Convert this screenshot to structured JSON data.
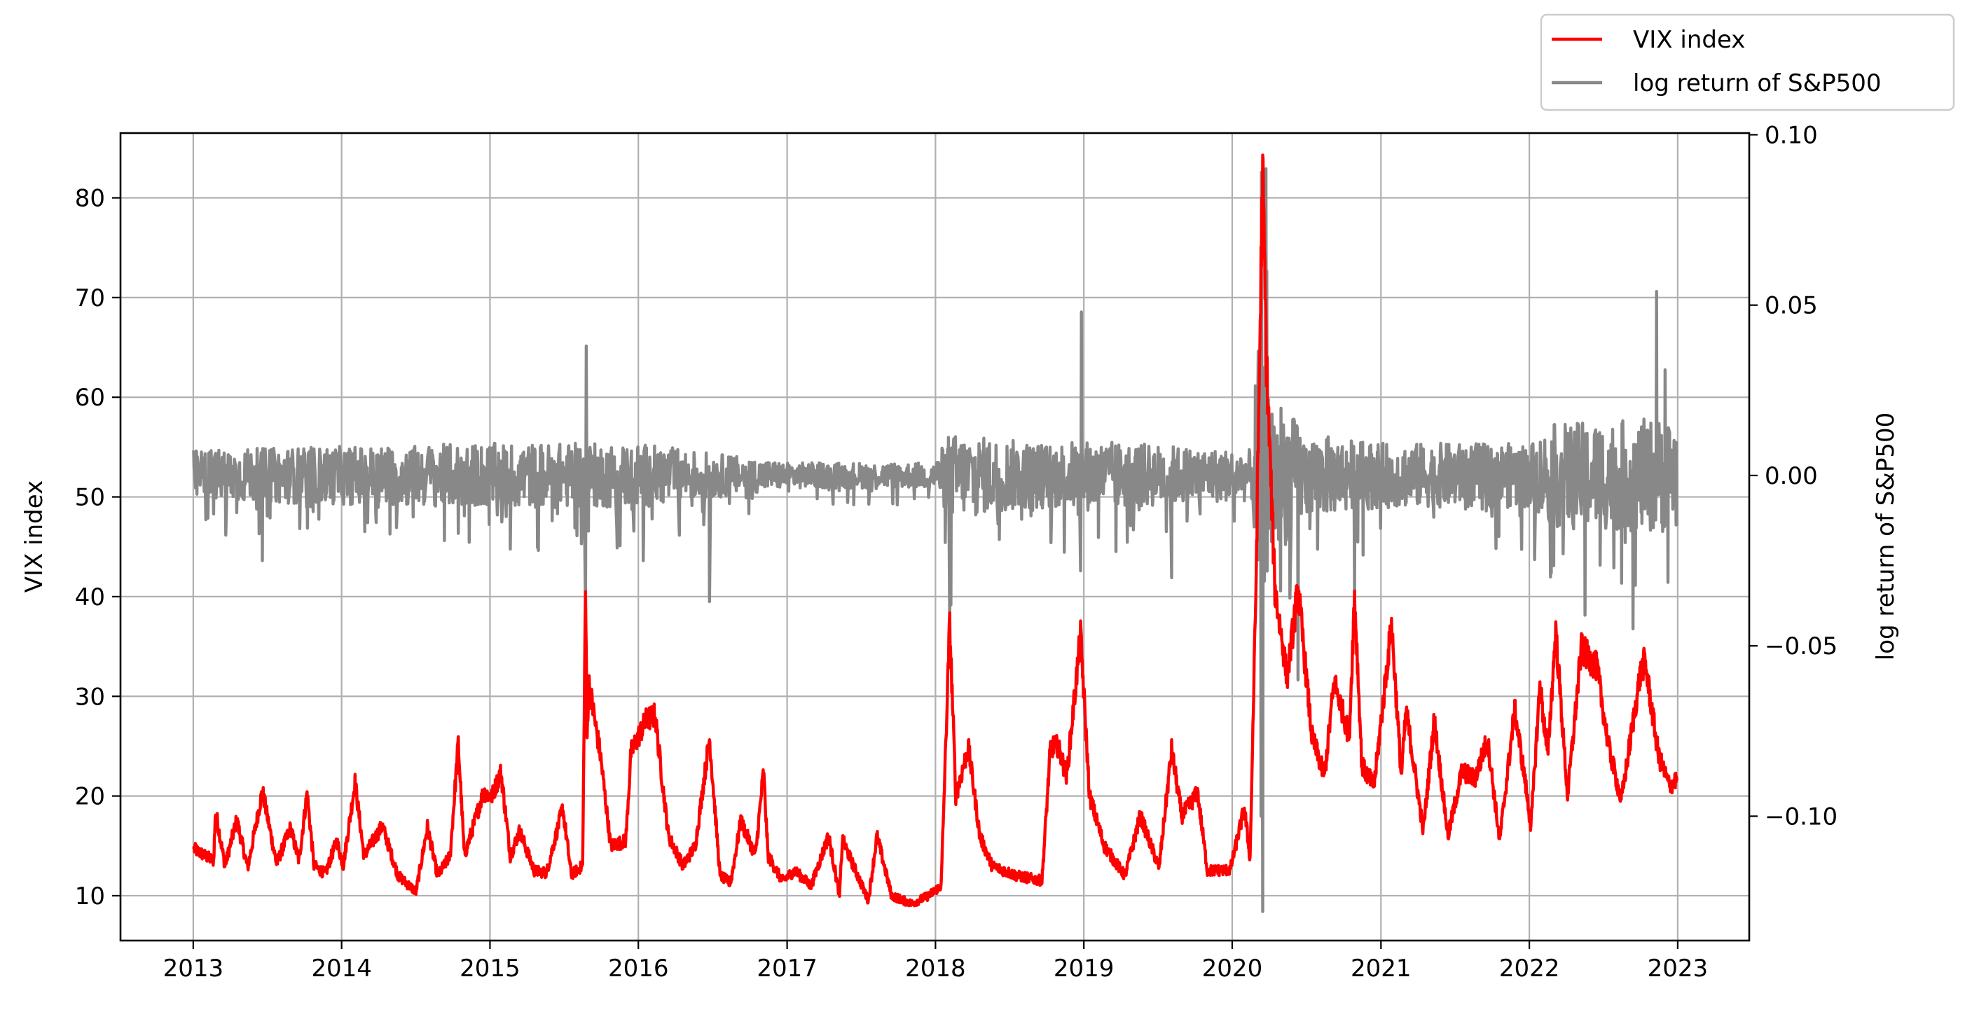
{
  "chart_data": {
    "type": "line",
    "x_axis": {
      "type": "date",
      "range": [
        "2012-07-06",
        "2023-06-26"
      ],
      "tick_labels": [
        "2013",
        "2014",
        "2015",
        "2016",
        "2017",
        "2018",
        "2019",
        "2020",
        "2021",
        "2022",
        "2023"
      ]
    },
    "y_left": {
      "label": "VIX index",
      "range": [
        5.5,
        86.5
      ],
      "ticks": [
        10,
        20,
        30,
        40,
        50,
        60,
        70,
        80
      ],
      "tick_labels": [
        "10",
        "20",
        "30",
        "40",
        "50",
        "60",
        "70",
        "80"
      ]
    },
    "y_right": {
      "label": "log return of S&P500",
      "range": [
        -0.1365,
        0.1005
      ],
      "ticks": [
        -0.1,
        -0.05,
        0.0,
        0.05,
        0.1
      ],
      "tick_labels": [
        "−0.10",
        "−0.05",
        "0.00",
        "0.05",
        "0.10"
      ]
    },
    "grid": true,
    "legend_position": "above-top-right",
    "series": [
      {
        "name": "VIX index",
        "axis": "left",
        "color": "#ff0000",
        "points": [
          [
            "2013-01-02",
            14.7
          ],
          [
            "2013-02-20",
            13.5
          ],
          [
            "2013-02-25",
            18.5
          ],
          [
            "2013-03-20",
            13.0
          ],
          [
            "2013-04-18",
            17.6
          ],
          [
            "2013-05-15",
            12.8
          ],
          [
            "2013-06-20",
            20.5
          ],
          [
            "2013-07-25",
            13.2
          ],
          [
            "2013-08-28",
            16.8
          ],
          [
            "2013-09-18",
            13.5
          ],
          [
            "2013-10-08",
            20.3
          ],
          [
            "2013-10-25",
            13.0
          ],
          [
            "2013-11-22",
            12.2
          ],
          [
            "2013-12-20",
            15.5
          ],
          [
            "2014-01-05",
            13.0
          ],
          [
            "2014-02-03",
            21.4
          ],
          [
            "2014-02-25",
            14.0
          ],
          [
            "2014-04-11",
            17.0
          ],
          [
            "2014-05-20",
            12.0
          ],
          [
            "2014-07-03",
            10.4
          ],
          [
            "2014-07-31",
            16.9
          ],
          [
            "2014-08-25",
            12.0
          ],
          [
            "2014-09-25",
            14.0
          ],
          [
            "2014-10-15",
            25.3
          ],
          [
            "2014-10-30",
            14.0
          ],
          [
            "2014-12-16",
            20.4
          ],
          [
            "2015-01-05",
            19.9
          ],
          [
            "2015-01-28",
            22.4
          ],
          [
            "2015-02-20",
            14.0
          ],
          [
            "2015-03-15",
            16.5
          ],
          [
            "2015-04-20",
            12.5
          ],
          [
            "2015-05-20",
            12.3
          ],
          [
            "2015-06-29",
            18.8
          ],
          [
            "2015-07-20",
            12.1
          ],
          [
            "2015-08-17",
            13.0
          ],
          [
            "2015-08-24",
            40.7
          ],
          [
            "2015-08-28",
            26.0
          ],
          [
            "2015-09-01",
            31.4
          ],
          [
            "2015-09-30",
            24.0
          ],
          [
            "2015-10-25",
            15.0
          ],
          [
            "2015-12-01",
            15.5
          ],
          [
            "2015-12-14",
            24.4
          ],
          [
            "2016-01-20",
            27.6
          ],
          [
            "2016-02-11",
            28.1
          ],
          [
            "2016-03-15",
            16.0
          ],
          [
            "2016-04-20",
            13.0
          ],
          [
            "2016-05-20",
            15.0
          ],
          [
            "2016-06-24",
            25.8
          ],
          [
            "2016-07-20",
            12.0
          ],
          [
            "2016-08-15",
            11.3
          ],
          [
            "2016-09-09",
            17.5
          ],
          [
            "2016-10-15",
            14.0
          ],
          [
            "2016-11-04",
            22.5
          ],
          [
            "2016-11-15",
            14.0
          ],
          [
            "2016-12-20",
            11.5
          ],
          [
            "2017-01-20",
            12.5
          ],
          [
            "2017-03-01",
            11.0
          ],
          [
            "2017-04-13",
            16.0
          ],
          [
            "2017-05-10",
            10.0
          ],
          [
            "2017-05-17",
            15.6
          ],
          [
            "2017-07-20",
            9.5
          ],
          [
            "2017-08-10",
            16.0
          ],
          [
            "2017-09-15",
            10.0
          ],
          [
            "2017-11-03",
            9.2
          ],
          [
            "2017-12-15",
            10.0
          ],
          [
            "2018-01-15",
            11.0
          ],
          [
            "2018-02-05",
            37.3
          ],
          [
            "2018-02-20",
            20.0
          ],
          [
            "2018-03-23",
            24.9
          ],
          [
            "2018-04-20",
            16.0
          ],
          [
            "2018-05-20",
            13.0
          ],
          [
            "2018-07-20",
            12.0
          ],
          [
            "2018-09-20",
            11.5
          ],
          [
            "2018-10-11",
            24.9
          ],
          [
            "2018-10-29",
            25.0
          ],
          [
            "2018-11-20",
            22.0
          ],
          [
            "2018-12-24",
            36.1
          ],
          [
            "2019-01-15",
            20.0
          ],
          [
            "2019-02-20",
            15.0
          ],
          [
            "2019-04-12",
            12.0
          ],
          [
            "2019-05-20",
            18.0
          ],
          [
            "2019-07-05",
            12.8
          ],
          [
            "2019-08-05",
            24.6
          ],
          [
            "2019-08-30",
            18.0
          ],
          [
            "2019-10-08",
            20.3
          ],
          [
            "2019-11-01",
            12.5
          ],
          [
            "2019-12-27",
            12.6
          ],
          [
            "2020-01-31",
            18.8
          ],
          [
            "2020-02-14",
            13.7
          ],
          [
            "2020-02-28",
            40.1
          ],
          [
            "2020-03-16",
            82.7
          ],
          [
            "2020-03-25",
            63.9
          ],
          [
            "2020-04-15",
            40.8
          ],
          [
            "2020-05-15",
            31.9
          ],
          [
            "2020-06-11",
            40.8
          ],
          [
            "2020-07-15",
            26.0
          ],
          [
            "2020-08-15",
            22.0
          ],
          [
            "2020-09-08",
            31.5
          ],
          [
            "2020-10-15",
            26.0
          ],
          [
            "2020-10-28",
            40.3
          ],
          [
            "2020-11-15",
            23.0
          ],
          [
            "2020-12-15",
            21.0
          ],
          [
            "2021-01-27",
            37.2
          ],
          [
            "2021-02-20",
            22.0
          ],
          [
            "2021-03-04",
            28.6
          ],
          [
            "2021-04-15",
            16.5
          ],
          [
            "2021-05-12",
            27.6
          ],
          [
            "2021-06-15",
            16.0
          ],
          [
            "2021-07-19",
            22.5
          ],
          [
            "2021-08-20",
            21.7
          ],
          [
            "2021-09-20",
            25.7
          ],
          [
            "2021-10-20",
            15.5
          ],
          [
            "2021-11-26",
            28.6
          ],
          [
            "2021-12-20",
            22.0
          ],
          [
            "2022-01-05",
            16.9
          ],
          [
            "2022-01-27",
            31.2
          ],
          [
            "2022-02-15",
            24.0
          ],
          [
            "2022-03-07",
            36.5
          ],
          [
            "2022-04-05",
            20.0
          ],
          [
            "2022-05-09",
            34.8
          ],
          [
            "2022-06-16",
            32.9
          ],
          [
            "2022-07-15",
            25.0
          ],
          [
            "2022-08-15",
            19.5
          ],
          [
            "2022-09-30",
            32.0
          ],
          [
            "2022-10-12",
            33.6
          ],
          [
            "2022-11-15",
            24.0
          ],
          [
            "2022-12-12",
            21.0
          ],
          [
            "2022-12-30",
            21.7
          ]
        ]
      },
      {
        "name": "log return of S&P500",
        "axis": "right",
        "color": "#888888",
        "baseline_noise": [
          [
            "2013-01-02",
            0.008
          ],
          [
            "2014-01-01",
            0.009
          ],
          [
            "2015-01-01",
            0.01
          ],
          [
            "2016-01-01",
            0.01
          ],
          [
            "2016-09-01",
            0.006
          ],
          [
            "2017-01-01",
            0.004
          ],
          [
            "2017-12-31",
            0.004
          ],
          [
            "2018-02-01",
            0.013
          ],
          [
            "2018-10-01",
            0.01
          ],
          [
            "2019-01-15",
            0.011
          ],
          [
            "2019-12-31",
            0.008
          ],
          [
            "2020-02-20",
            0.008
          ],
          [
            "2020-03-01",
            0.04
          ],
          [
            "2020-04-20",
            0.025
          ],
          [
            "2020-06-30",
            0.013
          ],
          [
            "2020-12-31",
            0.01
          ],
          [
            "2021-12-31",
            0.01
          ],
          [
            "2022-03-01",
            0.016
          ],
          [
            "2022-12-30",
            0.018
          ]
        ],
        "spikes": [
          [
            "2013-06-20",
            -0.025
          ],
          [
            "2014-10-15",
            -0.017
          ],
          [
            "2015-08-24",
            -0.039
          ],
          [
            "2015-08-26",
            0.038
          ],
          [
            "2016-01-13",
            -0.025
          ],
          [
            "2016-06-24",
            -0.037
          ],
          [
            "2018-02-05",
            -0.043
          ],
          [
            "2018-02-08",
            -0.038
          ],
          [
            "2018-12-24",
            -0.028
          ],
          [
            "2018-12-26",
            0.048
          ],
          [
            "2019-08-05",
            -0.03
          ],
          [
            "2020-03-12",
            -0.1
          ],
          [
            "2020-03-13",
            0.089
          ],
          [
            "2020-03-16",
            -0.128
          ],
          [
            "2020-03-24",
            0.09
          ],
          [
            "2020-03-26",
            0.06
          ],
          [
            "2020-06-11",
            -0.06
          ],
          [
            "2020-10-28",
            -0.035
          ],
          [
            "2022-05-18",
            -0.041
          ],
          [
            "2022-09-13",
            -0.045
          ],
          [
            "2022-11-10",
            0.054
          ],
          [
            "2022-12-01",
            0.031
          ]
        ]
      }
    ]
  }
}
